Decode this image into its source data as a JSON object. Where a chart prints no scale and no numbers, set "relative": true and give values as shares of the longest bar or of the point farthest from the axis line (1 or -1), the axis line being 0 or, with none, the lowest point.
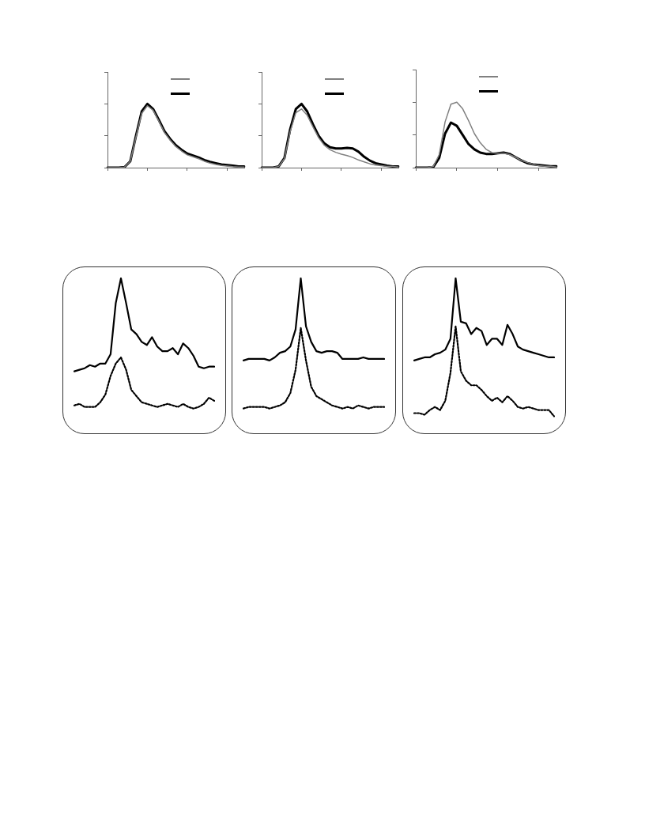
{
  "chart_data": [
    {
      "type": "line",
      "relative": true,
      "tick_labels": false,
      "categories": [
        null,
        null,
        null,
        null,
        null,
        null,
        null,
        null,
        null,
        null,
        null,
        null,
        null,
        null,
        null,
        null,
        null,
        null,
        null,
        null,
        null,
        null,
        null,
        null,
        null
      ],
      "series": [
        {
          "color": "#808080",
          "values": [
            0,
            0,
            0,
            0.01,
            0.1,
            0.48,
            0.85,
            0.97,
            0.9,
            0.73,
            0.55,
            0.43,
            0.33,
            0.26,
            0.2,
            0.17,
            0.14,
            0.1,
            0.07,
            0.05,
            0.035,
            0.025,
            0.015,
            0.01,
            0.01
          ]
        },
        {
          "color": "#000000",
          "values": [
            0,
            0,
            0,
            0.01,
            0.1,
            0.5,
            0.88,
            1,
            0.92,
            0.75,
            0.57,
            0.45,
            0.35,
            0.28,
            0.22,
            0.19,
            0.16,
            0.12,
            0.09,
            0.07,
            0.05,
            0.04,
            0.03,
            0.02,
            0.02
          ]
        }
      ]
    },
    {
      "type": "line",
      "relative": true,
      "tick_labels": false,
      "categories": [
        null,
        null,
        null,
        null,
        null,
        null,
        null,
        null,
        null,
        null,
        null,
        null,
        null,
        null,
        null,
        null,
        null,
        null,
        null,
        null,
        null,
        null,
        null,
        null,
        null
      ],
      "series": [
        {
          "color": "#808080",
          "values": [
            0,
            0,
            0,
            0.02,
            0.14,
            0.56,
            0.86,
            0.92,
            0.82,
            0.64,
            0.47,
            0.35,
            0.28,
            0.24,
            0.21,
            0.19,
            0.16,
            0.12,
            0.09,
            0.06,
            0.04,
            0.03,
            0.02,
            0.02,
            0.01
          ]
        },
        {
          "color": "#000000",
          "values": [
            0,
            0,
            0,
            0.02,
            0.15,
            0.6,
            0.92,
            1,
            0.88,
            0.68,
            0.5,
            0.38,
            0.32,
            0.3,
            0.3,
            0.31,
            0.3,
            0.25,
            0.17,
            0.11,
            0.07,
            0.05,
            0.03,
            0.02,
            0.02
          ]
        }
      ]
    },
    {
      "type": "line",
      "relative": true,
      "tick_labels": false,
      "categories": [
        null,
        null,
        null,
        null,
        null,
        null,
        null,
        null,
        null,
        null,
        null,
        null,
        null,
        null,
        null,
        null,
        null,
        null,
        null,
        null,
        null,
        null,
        null,
        null,
        null
      ],
      "series": [
        {
          "color": "#808080",
          "values": [
            0,
            0,
            0,
            0.02,
            0.2,
            0.7,
            0.97,
            1,
            0.9,
            0.72,
            0.52,
            0.38,
            0.28,
            0.23,
            0.22,
            0.22,
            0.2,
            0.16,
            0.11,
            0.08,
            0.05,
            0.03,
            0.02,
            0.02,
            0.01
          ]
        },
        {
          "color": "#000000",
          "values": [
            0,
            0,
            0,
            0.01,
            0.15,
            0.52,
            0.69,
            0.64,
            0.5,
            0.36,
            0.28,
            0.23,
            0.21,
            0.21,
            0.22,
            0.23,
            0.21,
            0.16,
            0.11,
            0.07,
            0.05,
            0.04,
            0.03,
            0.02,
            0.02
          ]
        }
      ]
    },
    {
      "type": "line",
      "relative": true,
      "categories": [
        null,
        null,
        null,
        null,
        null,
        null,
        null,
        null,
        null,
        null,
        null,
        null,
        null,
        null,
        null,
        null,
        null,
        null,
        null,
        null,
        null,
        null,
        null,
        null,
        null,
        null,
        null,
        null
      ],
      "series": [
        {
          "color": "#000000",
          "line_style": "solid",
          "values": [
            0.4,
            0.41,
            0.42,
            0.44,
            0.43,
            0.45,
            0.45,
            0.51,
            0.84,
            1,
            0.84,
            0.67,
            0.64,
            0.59,
            0.57,
            0.62,
            0.56,
            0.53,
            0.53,
            0.55,
            0.51,
            0.58,
            0.55,
            0.5,
            0.43,
            0.42,
            0.43,
            0.43
          ]
        },
        {
          "color": "#000000",
          "line_style": "dotted",
          "values": [
            0.18,
            0.19,
            0.17,
            0.17,
            0.17,
            0.2,
            0.25,
            0.37,
            0.45,
            0.49,
            0.41,
            0.28,
            0.24,
            0.2,
            0.19,
            0.18,
            0.17,
            0.18,
            0.19,
            0.18,
            0.17,
            0.19,
            0.17,
            0.16,
            0.17,
            0.19,
            0.23,
            0.21
          ]
        }
      ]
    },
    {
      "type": "line",
      "relative": true,
      "categories": [
        null,
        null,
        null,
        null,
        null,
        null,
        null,
        null,
        null,
        null,
        null,
        null,
        null,
        null,
        null,
        null,
        null,
        null,
        null,
        null,
        null,
        null,
        null,
        null,
        null,
        null,
        null,
        null
      ],
      "series": [
        {
          "color": "#000000",
          "line_style": "solid",
          "values": [
            0.47,
            0.48,
            0.48,
            0.48,
            0.48,
            0.47,
            0.49,
            0.52,
            0.53,
            0.56,
            0.67,
            1,
            0.69,
            0.59,
            0.53,
            0.52,
            0.53,
            0.53,
            0.52,
            0.48,
            0.48,
            0.48,
            0.48,
            0.49,
            0.48,
            0.48,
            0.48,
            0.48
          ]
        },
        {
          "color": "#000000",
          "line_style": "dotted",
          "values": [
            0.16,
            0.17,
            0.17,
            0.17,
            0.17,
            0.16,
            0.17,
            0.18,
            0.2,
            0.26,
            0.41,
            0.68,
            0.47,
            0.3,
            0.24,
            0.22,
            0.2,
            0.18,
            0.17,
            0.16,
            0.17,
            0.16,
            0.18,
            0.17,
            0.16,
            0.17,
            0.17,
            0.17
          ]
        }
      ]
    },
    {
      "type": "line",
      "relative": true,
      "categories": [
        null,
        null,
        null,
        null,
        null,
        null,
        null,
        null,
        null,
        null,
        null,
        null,
        null,
        null,
        null,
        null,
        null,
        null,
        null,
        null,
        null,
        null,
        null,
        null,
        null,
        null,
        null,
        null
      ],
      "series": [
        {
          "color": "#000000",
          "line_style": "solid",
          "values": [
            0.47,
            0.48,
            0.49,
            0.49,
            0.51,
            0.52,
            0.54,
            0.61,
            1,
            0.72,
            0.71,
            0.64,
            0.68,
            0.66,
            0.57,
            0.61,
            0.61,
            0.57,
            0.7,
            0.64,
            0.56,
            0.54,
            0.53,
            0.52,
            0.51,
            0.5,
            0.49,
            0.49
          ]
        },
        {
          "color": "#000000",
          "line_style": "dotted",
          "values": [
            0.13,
            0.13,
            0.12,
            0.15,
            0.17,
            0.15,
            0.21,
            0.39,
            0.69,
            0.4,
            0.34,
            0.31,
            0.31,
            0.28,
            0.24,
            0.21,
            0.23,
            0.2,
            0.24,
            0.21,
            0.17,
            0.16,
            0.17,
            0.16,
            0.15,
            0.15,
            0.15,
            0.11
          ]
        }
      ]
    }
  ]
}
